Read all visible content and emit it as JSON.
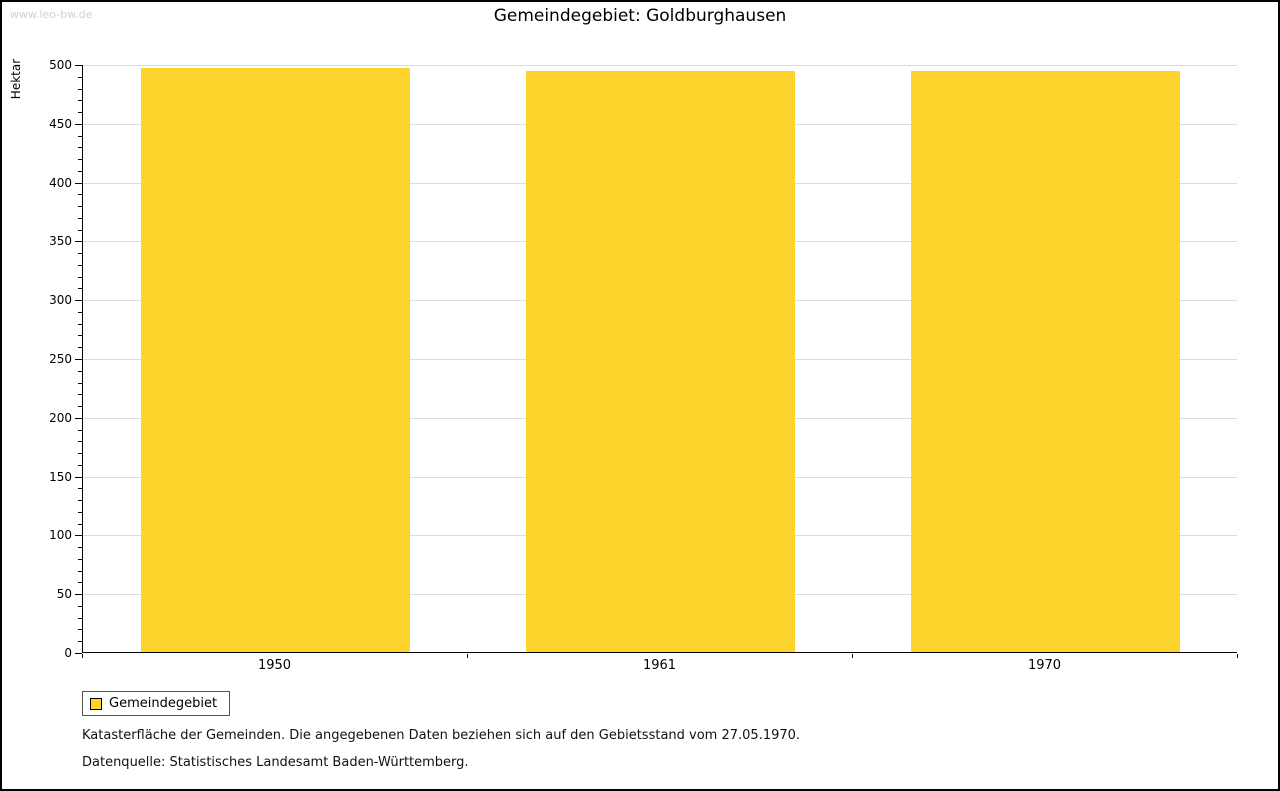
{
  "watermark": "www.leo-bw.de",
  "chart_data": {
    "type": "bar",
    "title": "Gemeindegebiet: Goldburghausen",
    "ylabel": "Hektar",
    "xlabel": "",
    "categories": [
      "1950",
      "1961",
      "1970"
    ],
    "values": [
      497,
      494,
      494
    ],
    "ylim": [
      0,
      500
    ],
    "ytick_step": 50,
    "ytick_minor_step": 10,
    "grid": true,
    "bar_color": "#FCD42B",
    "legend": [
      "Gemeindegebiet"
    ],
    "legend_position": "bottom-left"
  },
  "footnotes": [
    "Katasterfläche der Gemeinden. Die angegebenen Daten beziehen sich auf den Gebietsstand vom 27.05.1970.",
    "Datenquelle: Statistisches Landesamt Baden-Württemberg."
  ]
}
